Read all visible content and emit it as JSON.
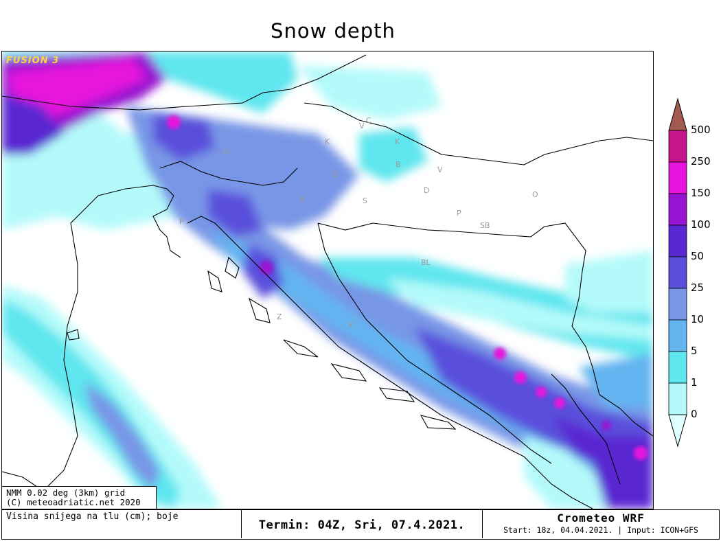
{
  "title": "Snow depth",
  "brand_tag": "FUSION 3",
  "grid_note": [
    "NMM 0.02 deg (3km) grid",
    "(C) meteoadriatic.net 2020"
  ],
  "footer": {
    "variable": "Visina snijega na tlu (cm); boje",
    "termin": "Termin: 04Z, Sri, 07.4.2021.",
    "brand": "Crometeo WRF",
    "meta": "Start: 18z, 04.04.2021. | Input: ICON+GFS"
  },
  "legend": {
    "units": "cm",
    "levels": [
      0,
      1,
      5,
      10,
      25,
      50,
      100,
      150,
      250,
      500
    ],
    "colors": [
      "#e0ffff",
      "#b4fafa",
      "#5fe6ee",
      "#64b4f0",
      "#7896e6",
      "#5a50dc",
      "#5a28d2",
      "#9614d2",
      "#e614dc",
      "#c8148c",
      "#a05a50"
    ]
  },
  "region_labels": [
    "V",
    "C",
    "K",
    "K",
    "B",
    "V",
    "Z",
    "D",
    "O",
    "S",
    "P",
    "SB",
    "K",
    "LJ",
    "P",
    "BL",
    "K",
    "Z"
  ]
}
